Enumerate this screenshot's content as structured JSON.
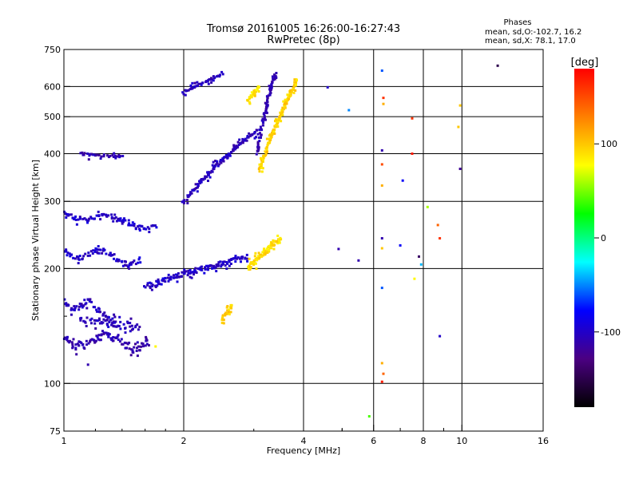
{
  "chart_data": {
    "type": "scatter",
    "title": "Tromsø 20161005 16:26:00-16:27:43",
    "subtitle": "RwPretec (8p)",
    "xlabel": "Frequency [MHz]",
    "ylabel": "Stationary phase Virtual Height [km]",
    "x_scale": "log",
    "y_scale": "log",
    "xlim": [
      1,
      16
    ],
    "ylim": [
      75,
      750
    ],
    "x_ticks": [
      {
        "value": 1,
        "label": "1"
      },
      {
        "value": 2,
        "label": "2"
      },
      {
        "value": 4,
        "label": "4"
      },
      {
        "value": 6,
        "label": "6"
      },
      {
        "value": 8,
        "label": "8"
      },
      {
        "value": 10,
        "label": "10"
      },
      {
        "value": 16,
        "label": "16"
      }
    ],
    "x_minor": [
      5,
      7,
      9
    ],
    "y_ticks": [
      {
        "value": 75,
        "label": "75"
      },
      {
        "value": 100,
        "label": "100"
      },
      {
        "value": 200,
        "label": "200"
      },
      {
        "value": 300,
        "label": "300"
      },
      {
        "value": 400,
        "label": "400"
      },
      {
        "value": 500,
        "label": "500"
      },
      {
        "value": 600,
        "label": "600"
      },
      {
        "value": 750,
        "label": "750"
      }
    ],
    "y_minor": [
      150
    ],
    "grid": true,
    "legend": {
      "title": "Phases",
      "lines": [
        "mean, sd,O:-102.7, 16.2",
        "mean, sd,X:  78.1, 17.0"
      ],
      "position": "top-right"
    },
    "colorbar": {
      "label": "[deg]",
      "range": [
        -180,
        180
      ],
      "ticks": [
        {
          "value": 100,
          "label": "100"
        },
        {
          "value": 0,
          "label": "0"
        },
        {
          "value": -100,
          "label": "-100"
        }
      ],
      "colors": [
        "#000000",
        "#4b0082",
        "#0000ff",
        "#00ffff",
        "#00ff00",
        "#ffff00",
        "#ff8000",
        "#ff0000"
      ]
    },
    "series": [
      {
        "kind": "curve",
        "phase": -110,
        "x0": 1.0,
        "x1": 1.63,
        "h0": 130,
        "h1": 128,
        "dip": 6,
        "n": 70
      },
      {
        "kind": "curve",
        "phase": -105,
        "x0": 1.0,
        "x1": 1.35,
        "h0": 165,
        "h1": 150,
        "dip": 6,
        "n": 40
      },
      {
        "kind": "curve",
        "phase": -105,
        "x0": 1.1,
        "x1": 1.55,
        "h0": 148,
        "h1": 140,
        "dip": 0,
        "n": 40
      },
      {
        "kind": "curve",
        "phase": -100,
        "x0": 1.0,
        "x1": 1.55,
        "h0": 222,
        "h1": 210,
        "dip": 8,
        "n": 50
      },
      {
        "kind": "curve",
        "phase": -100,
        "x0": 1.0,
        "x1": 1.7,
        "h0": 280,
        "h1": 258,
        "dip": 8,
        "n": 60
      },
      {
        "kind": "curve",
        "phase": -110,
        "x0": 1.1,
        "x1": 1.4,
        "h0": 400,
        "h1": 392,
        "dip": 0,
        "n": 25
      },
      {
        "kind": "curve",
        "phase": -105,
        "x0": 2.0,
        "x1": 2.5,
        "h0": 580,
        "h1": 645,
        "dip": 0,
        "n": 30
      },
      {
        "kind": "curve",
        "phase": -105,
        "x0": 2.0,
        "x1": 3.05,
        "h0": 300,
        "h1": 460,
        "dip": 0,
        "n": 90
      },
      {
        "kind": "curve",
        "phase": -110,
        "x0": 3.05,
        "x1": 3.4,
        "h0": 400,
        "h1": 650,
        "dip": 0,
        "n": 60
      },
      {
        "kind": "curve",
        "phase": 95,
        "x0": 3.1,
        "x1": 3.85,
        "h0": 360,
        "h1": 620,
        "dip": 0,
        "n": 110
      },
      {
        "kind": "curve",
        "phase": 90,
        "x0": 2.9,
        "x1": 3.1,
        "h0": 550,
        "h1": 600,
        "dip": 0,
        "n": 20
      },
      {
        "kind": "curve",
        "phase": -100,
        "x0": 1.6,
        "x1": 2.9,
        "h0": 180,
        "h1": 215,
        "dip": 0,
        "n": 90
      },
      {
        "kind": "curve",
        "phase": 90,
        "x0": 2.9,
        "x1": 3.5,
        "h0": 200,
        "h1": 240,
        "dip": 0,
        "n": 60
      },
      {
        "kind": "curve",
        "phase": 95,
        "x0": 2.5,
        "x1": 2.65,
        "h0": 145,
        "h1": 160,
        "dip": 0,
        "n": 18
      }
    ],
    "points": [
      {
        "x": 1.15,
        "y": 112,
        "phase": -110
      },
      {
        "x": 1.7,
        "y": 125,
        "phase": 80
      },
      {
        "x": 4.6,
        "y": 597,
        "phase": -100
      },
      {
        "x": 5.2,
        "y": 520,
        "phase": -50
      },
      {
        "x": 5.5,
        "y": 210,
        "phase": -110
      },
      {
        "x": 4.9,
        "y": 225,
        "phase": -110
      },
      {
        "x": 5.85,
        "y": 82,
        "phase": 40
      },
      {
        "x": 6.3,
        "y": 660,
        "phase": -60
      },
      {
        "x": 6.35,
        "y": 560,
        "phase": 160
      },
      {
        "x": 6.35,
        "y": 540,
        "phase": 110
      },
      {
        "x": 6.3,
        "y": 408,
        "phase": -110
      },
      {
        "x": 6.3,
        "y": 375,
        "phase": 150
      },
      {
        "x": 6.3,
        "y": 330,
        "phase": 110
      },
      {
        "x": 6.3,
        "y": 240,
        "phase": -110
      },
      {
        "x": 6.3,
        "y": 226,
        "phase": 100
      },
      {
        "x": 6.3,
        "y": 178,
        "phase": -60
      },
      {
        "x": 6.3,
        "y": 113,
        "phase": 110
      },
      {
        "x": 6.35,
        "y": 106,
        "phase": 140
      },
      {
        "x": 6.3,
        "y": 101,
        "phase": 170
      },
      {
        "x": 7.1,
        "y": 340,
        "phase": -80
      },
      {
        "x": 7.0,
        "y": 230,
        "phase": -80
      },
      {
        "x": 7.5,
        "y": 495,
        "phase": 160
      },
      {
        "x": 7.5,
        "y": 400,
        "phase": 170
      },
      {
        "x": 7.6,
        "y": 188,
        "phase": 80
      },
      {
        "x": 7.8,
        "y": 215,
        "phase": -140
      },
      {
        "x": 7.9,
        "y": 205,
        "phase": -40
      },
      {
        "x": 8.2,
        "y": 290,
        "phase": 60
      },
      {
        "x": 8.7,
        "y": 260,
        "phase": 140
      },
      {
        "x": 8.8,
        "y": 240,
        "phase": 160
      },
      {
        "x": 8.8,
        "y": 133,
        "phase": -100
      },
      {
        "x": 9.8,
        "y": 470,
        "phase": 100
      },
      {
        "x": 9.9,
        "y": 535,
        "phase": 100
      },
      {
        "x": 9.9,
        "y": 365,
        "phase": -120
      },
      {
        "x": 12.3,
        "y": 680,
        "phase": -150
      }
    ]
  }
}
